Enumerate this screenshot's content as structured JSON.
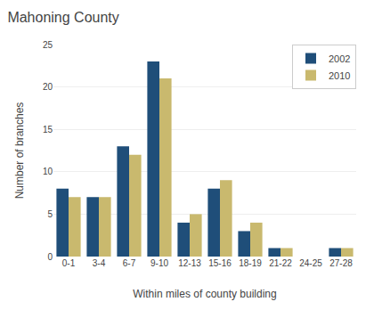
{
  "chart_data": {
    "type": "bar",
    "title": "Mahoning County",
    "xlabel": "Within miles of county building",
    "ylabel": "Number of branches",
    "categories": [
      "0-1",
      "3-4",
      "6-7",
      "9-10",
      "12-13",
      "15-16",
      "18-19",
      "21-22",
      "24-25",
      "27-28"
    ],
    "series": [
      {
        "name": "2002",
        "color": "#1f4e79",
        "values": [
          8,
          7,
          13,
          23,
          4,
          8,
          3,
          1,
          0,
          1
        ]
      },
      {
        "name": "2010",
        "color": "#c9b96e",
        "values": [
          7,
          7,
          12,
          21,
          5,
          9,
          4,
          1,
          0,
          1
        ]
      }
    ],
    "ylim": [
      0,
      25
    ],
    "yticks": [
      0,
      5,
      10,
      15,
      20,
      25
    ],
    "grid": true,
    "legend": "upper right"
  }
}
